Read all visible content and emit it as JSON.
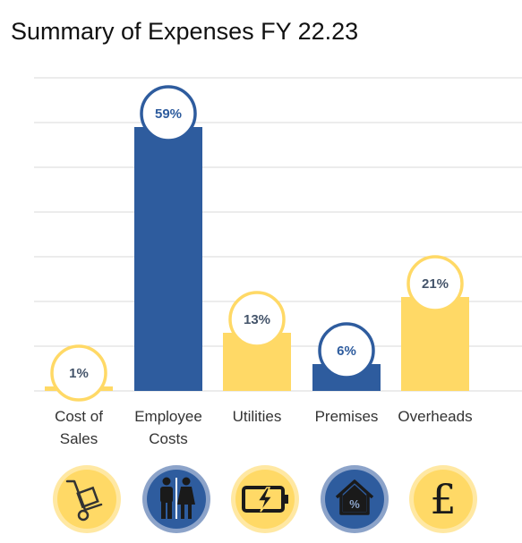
{
  "chart_data": {
    "type": "bar",
    "title": "Summary of Expenses FY 22.23",
    "unit": "%",
    "categories": [
      {
        "label_lines": [
          "Cost of",
          "Sales"
        ],
        "value": 1,
        "display": "1%",
        "color": "#FFD966",
        "icon": "hand-truck-icon"
      },
      {
        "label_lines": [
          "Employee",
          "Costs"
        ],
        "value": 59,
        "display": "59%",
        "color": "#2E5C9E",
        "icon": "people-icon"
      },
      {
        "label_lines": [
          "Utilities"
        ],
        "value": 13,
        "display": "13%",
        "color": "#FFD966",
        "icon": "battery-charging-icon"
      },
      {
        "label_lines": [
          "Premises"
        ],
        "value": 6,
        "display": "6%",
        "color": "#2E5C9E",
        "icon": "house-percent-icon"
      },
      {
        "label_lines": [
          "Overheads"
        ],
        "value": 21,
        "display": "21%",
        "color": "#FFD966",
        "icon": "pound-sign-icon"
      }
    ],
    "ylim": [
      0,
      70
    ],
    "grid": true,
    "legend": "none"
  },
  "colors": {
    "yellow": "#FFD966",
    "blue": "#2E5C9E",
    "label_text": "#44546A",
    "grid": "#D9D9D9"
  }
}
